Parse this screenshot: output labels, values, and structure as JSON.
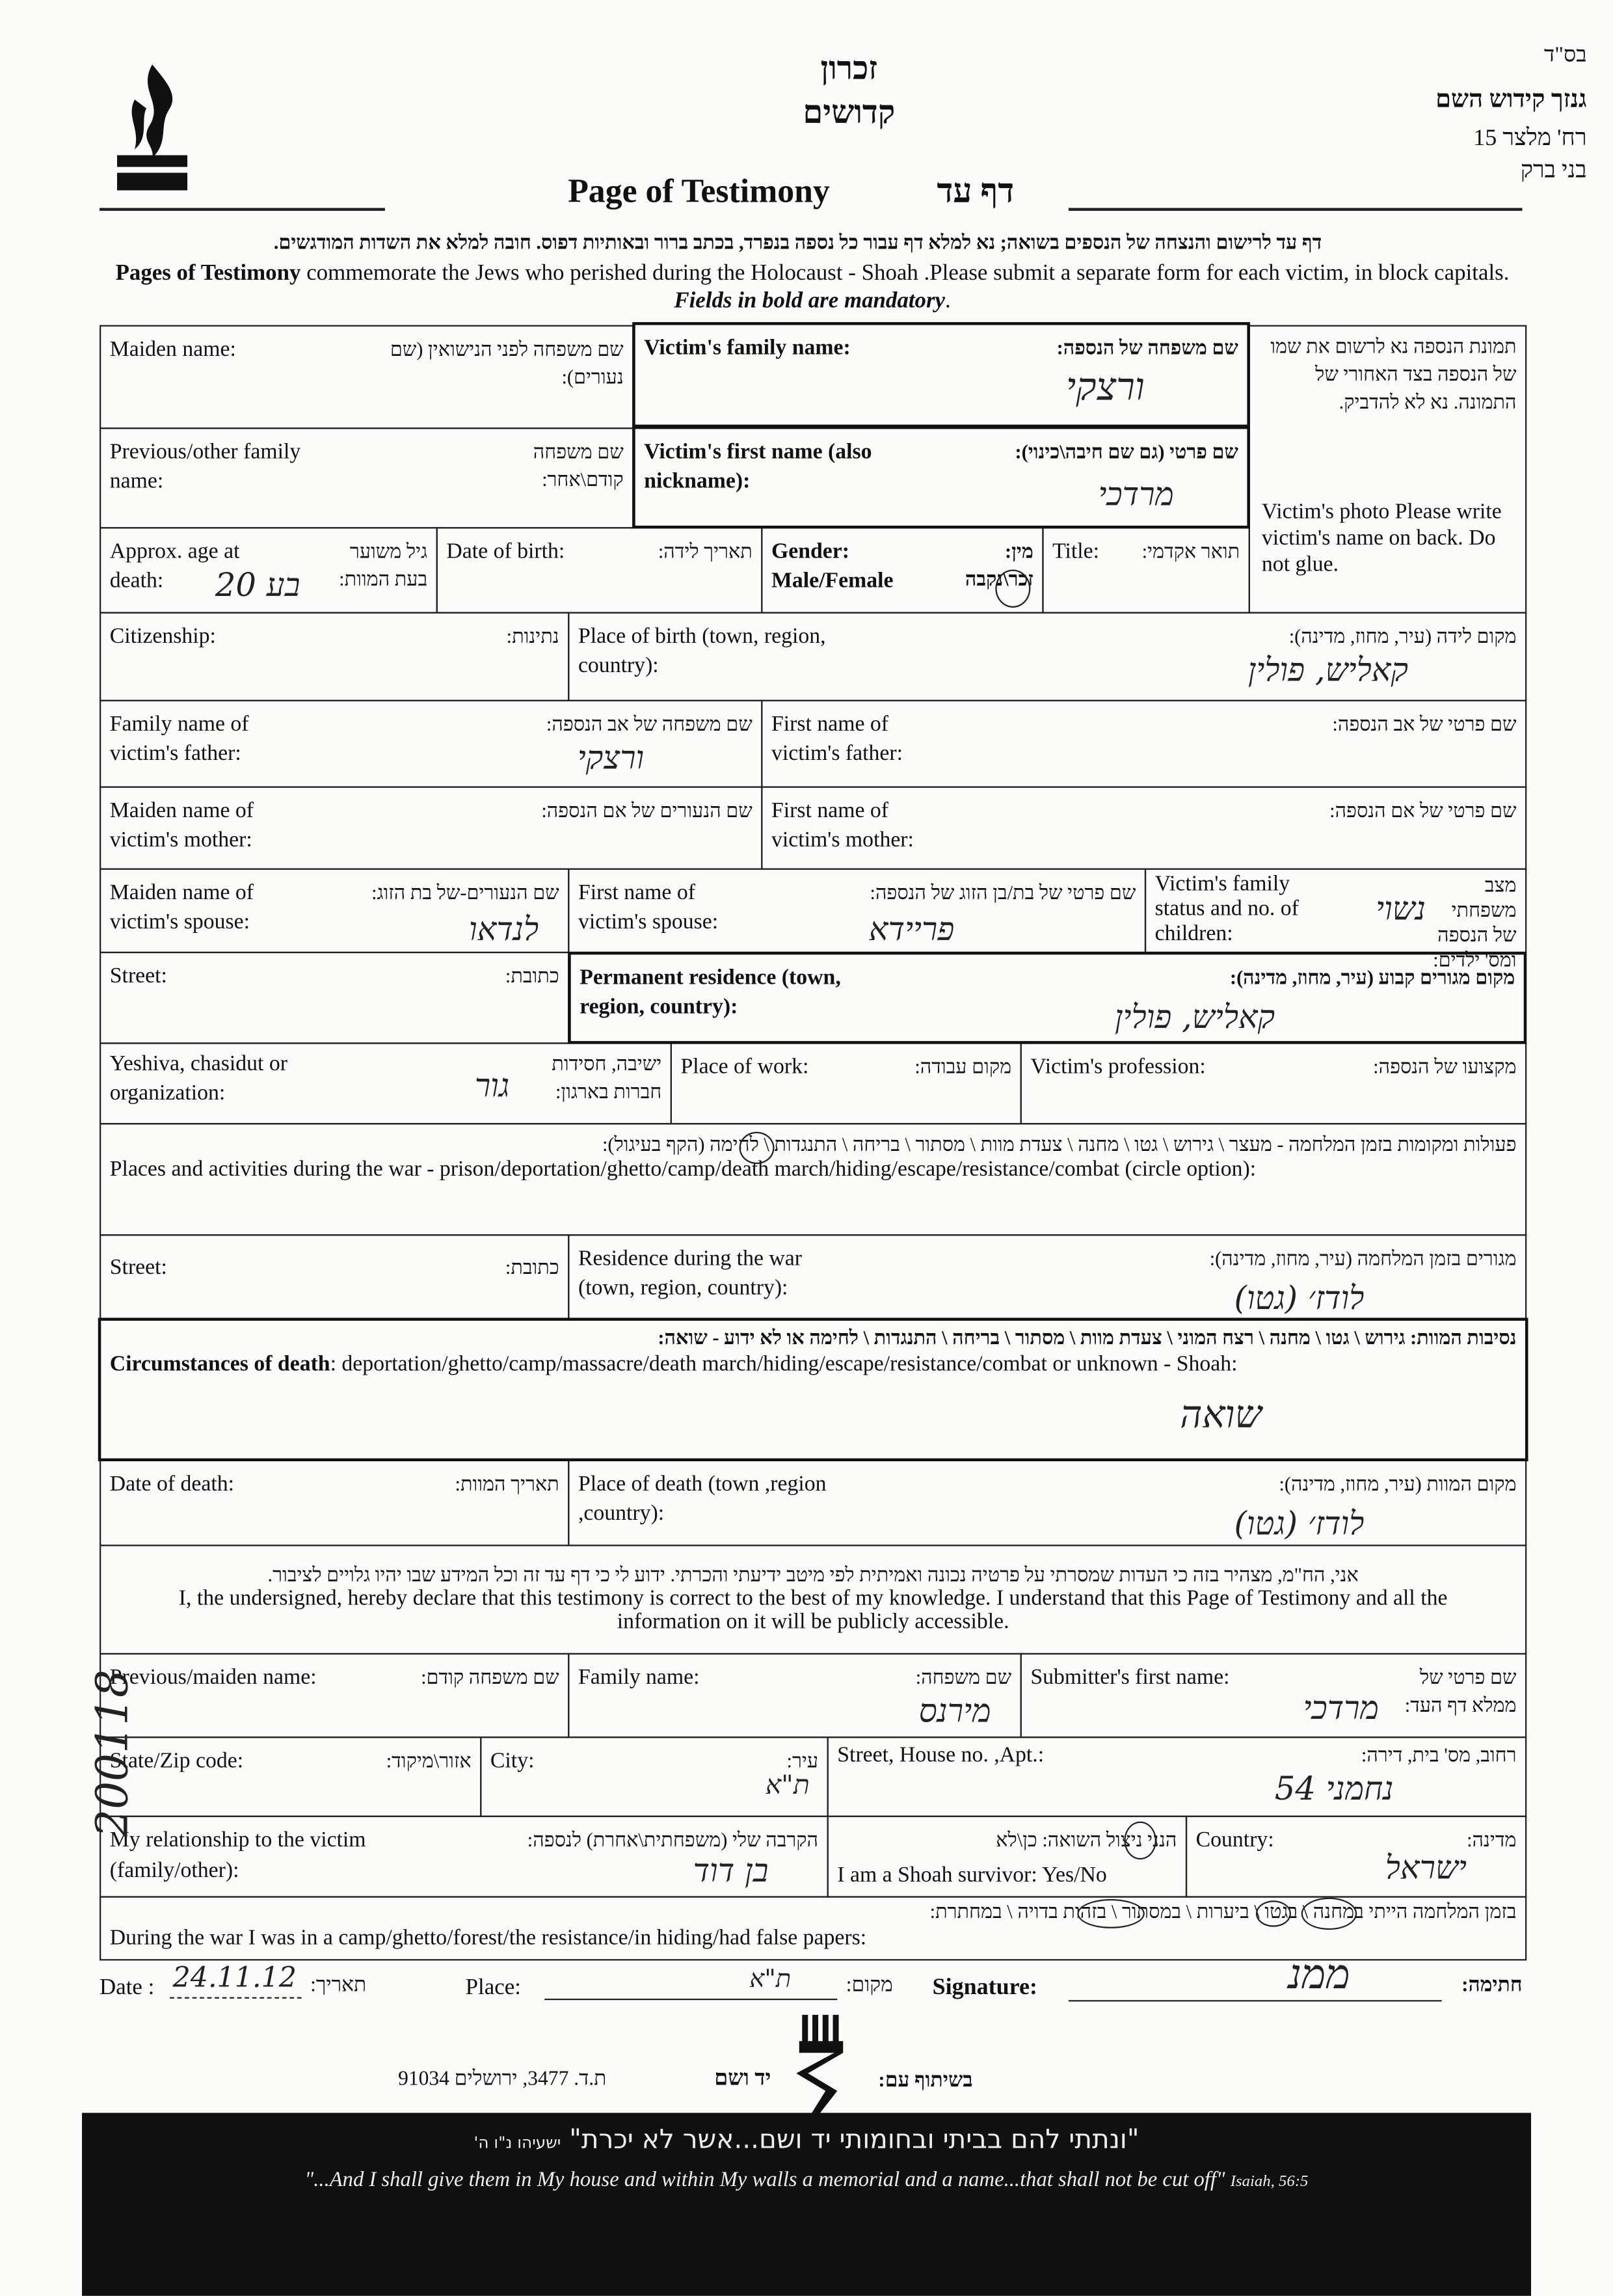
{
  "header": {
    "bsd": "בס\"ד",
    "org_name": "גנזך קידוש השם",
    "org_street": "רח' מלצר 15",
    "org_city": "בני ברק",
    "center_title_1": "זכרון",
    "center_title_2": "קדושים",
    "logo_text": "גנזך קידוש השם",
    "title_en": "Page of Testimony",
    "title_he": "דף עד"
  },
  "instructions": {
    "he": "דף עד לרישום והנצחה של הנספים בשואה; נא למלא דף עבור כל נספה בנפרד, בכתב ברור ובאותיות דפוס. חובה למלא את השדות המודגשים.",
    "en_bold": "Pages of Testimony",
    "en": " commemorate the Jews who perished during the Holocaust - Shoah .Please submit a separate form for each victim, in block capitals. ",
    "en_italic": "Fields in bold are mandatory"
  },
  "photo_box": {
    "he": "תמונת הנספה נא לרשום את שמו של הנספה בצד האחורי של התמונה. נא לא להדביק.",
    "en": "Victim's photo Please write victim's name on back. Do not glue."
  },
  "fields": {
    "maiden_name": {
      "en": "Maiden name:",
      "he": "שם משפחה לפני הנישואין (שם נעורים):"
    },
    "family_name": {
      "en": "Victim's family name:",
      "he": "שם משפחה של הנספה:",
      "value": "ורצקי"
    },
    "previous_name": {
      "en": "Previous/other family name:",
      "he": "שם משפחה קודם\\אחר:"
    },
    "first_name": {
      "en": "Victim's first name (also nickname):",
      "he": "שם פרטי (גם שם חיבה\\כינוי):",
      "value": "מרדכי"
    },
    "age": {
      "en": "Approx. age at death:",
      "he": "גיל משוער בעת המוות:",
      "value": "20 בע"
    },
    "dob": {
      "en": "Date of birth:",
      "he": "תאריך לידה:"
    },
    "gender": {
      "en": "Gender: Male/Female",
      "he": "מין: זכר\\נקבה",
      "selected": "זכר"
    },
    "title": {
      "en": "Title:",
      "he": "תואר אקדמי:"
    },
    "citizenship": {
      "en": "Citizenship:",
      "he": "נתינות:"
    },
    "place_of_birth": {
      "en": "Place of birth (town, region, country):",
      "he": "מקום לידה (עיר, מחוז, מדינה):",
      "value": "קאליש, פולין"
    },
    "father_family": {
      "en": "Family name of victim's father:",
      "he": "שם משפחה של אב הנספה:",
      "value": "ורצקי"
    },
    "father_first": {
      "en": "First name of victim's father:",
      "he": "שם פרטי של אב הנספה:"
    },
    "mother_maiden": {
      "en": "Maiden name of victim's mother:",
      "he": "שם הנעורים של אם הנספה:"
    },
    "mother_first": {
      "en": "First name of victim's mother:",
      "he": "שם פרטי של אם הנספה:"
    },
    "spouse_maiden": {
      "en": "Maiden name of victim's spouse:",
      "he": "שם הנעורים-של בת הזוג:",
      "value": "לנדאו"
    },
    "spouse_first": {
      "en": "First name of victim's spouse:",
      "he": "שם פרטי של בת/בן הזוג של הנספה:",
      "value": "פריידא"
    },
    "family_status": {
      "en": "Victim's family status and no. of children:",
      "he": "מצב משפחתי של הנספה ומס' ילדים:",
      "value": "נשוי"
    },
    "street": {
      "en": "Street:",
      "he": "כתובת:"
    },
    "permanent_residence": {
      "en": "Permanent residence (town, region, country):",
      "he": "מקום מגורים קבוע (עיר, מחוז, מדינה):",
      "value": "קאליש, פולין"
    },
    "yeshiva": {
      "en": "Yeshiva, chasidut or organization:",
      "he": "ישיבה, חסידות חברות בארגון:",
      "value": "גור"
    },
    "place_of_work": {
      "en": "Place of work:",
      "he": "מקום עבודה:"
    },
    "profession": {
      "en": "Victim's profession:",
      "he": "מקצועו של הנספה:"
    },
    "war_activities": {
      "he": "פעולות ומקומות בזמן המלחמה - מעצר \\ גירוש \\ גטו \\ מחנה \\ צעדת מוות \\ מסתור \\ בריחה \\ התנגדות \\ לחימה (הקף בעיגול):",
      "en": "Places and activities during the war - prison/deportation/ghetto/camp/death march/hiding/escape/resistance/combat (circle option):",
      "selected": "גטו"
    },
    "war_street": {
      "en": "Street:",
      "he": "כתובת:"
    },
    "war_residence": {
      "en": "Residence during the war (town, region, country):",
      "he": "מגורים בזמן המלחמה (עיר, מחוז, מדינה):",
      "value": "לודז׳ (גטו)"
    },
    "circumstances": {
      "he": "נסיבות המוות: גירוש \\ גטו \\ מחנה \\ רצח המוני \\ צעדת מוות \\ מסתור \\ בריחה \\ התנגדות \\ לחימה או לא ידוע - שואה:",
      "en_bold": "Circumstances of death",
      "en": ": deportation/ghetto/camp/massacre/death march/hiding/escape/resistance/combat or unknown - Shoah:",
      "value": "שואה"
    },
    "date_of_death": {
      "en": "Date of death:",
      "he": "תאריך המוות:"
    },
    "place_of_death": {
      "en": "Place of death (town ,region ,country):",
      "he": "מקום המוות (עיר, מחוז, מדינה):",
      "value": "לודז׳ (גטו)"
    }
  },
  "declaration": {
    "he": "אני, הח\"מ, מצהיר בזה כי העדות שמסרתי על פרטיה נכונה ואמיתית לפי מיטב ידיעתי והכרתי. ידוע לי כי דף עד זה וכל המידע שבו יהיו גלויים לציבור.",
    "en": "I, the undersigned, hereby declare that this testimony is correct to the best of my knowledge. I understand that this Page of Testimony and all the information on it will be publicly accessible."
  },
  "submitter": {
    "previous_name": {
      "en": "Previous/maiden name:",
      "he": "שם משפחה קודם:"
    },
    "family_name": {
      "en": "Family name:",
      "he": "שם משפחה:",
      "value": "מירנס"
    },
    "first_name": {
      "en": "Submitter's first name:",
      "he": "שם פרטי של ממלא דף העד:",
      "value": "מרדכי"
    },
    "zip": {
      "en": "State/Zip code:",
      "he": "אזור\\מיקוד:"
    },
    "city": {
      "en": "City:",
      "he": "עיר:",
      "value": "ת\"א"
    },
    "street": {
      "en": "Street, House no. ,Apt.:",
      "he": "רחוב, מס' בית, דירה:",
      "value": "נחמני 54"
    },
    "relationship": {
      "en": "My relationship to the victim (family/other):",
      "he": "הקרבה שלי (משפחתית\\אחרת) לנספה:",
      "value": "בן דוד"
    },
    "survivor": {
      "en": "I am a Shoah survivor:  Yes/No",
      "he": "הנני ניצול השואה: כן\\לא",
      "selected": "כן"
    },
    "country": {
      "en": "Country:",
      "he": "מדינה:",
      "value": "ישראל"
    },
    "during_war": {
      "he": "בזמן המלחמה הייתי במחנה \\ בגטו \\ ביערות \\ במסתור \\ בזהות בדויה \\ במחתרת:",
      "en": "During the war I was in a camp/ghetto/forest/the resistance/in hiding/had false papers:",
      "selected": [
        "במחנה",
        "בגטו",
        "במסתור"
      ]
    }
  },
  "signoff": {
    "date_label": "Date :",
    "date_value": "24.11.12",
    "date_he": "תאריך:",
    "place_label": "Place:",
    "place_value": "ת\"א",
    "place_he": "מקום:",
    "signature_label": "Signature:",
    "signature_he": "חתימה:",
    "signature_value": "ממנ"
  },
  "archive_number": "200118",
  "footer": {
    "partner_label": "בשיתוף עם:",
    "partner_name": "יד ושם",
    "partner_address": "ת.ד. 3477, ירושלים 91034",
    "quote_he": "\"ונתתי להם בביתי ובחומותי יד ושם...אשר לא יכרת\"",
    "quote_he_ref": "ישעיהו נ\"ו ה'",
    "quote_en": "\"...And I shall give them in My house and within My walls a memorial and a name...that shall not be cut off\"",
    "quote_en_ref": "Isaiah, 56:5"
  },
  "colors": {
    "ink": "#111111",
    "band": "#111111",
    "paper": "#fbfbfa"
  }
}
